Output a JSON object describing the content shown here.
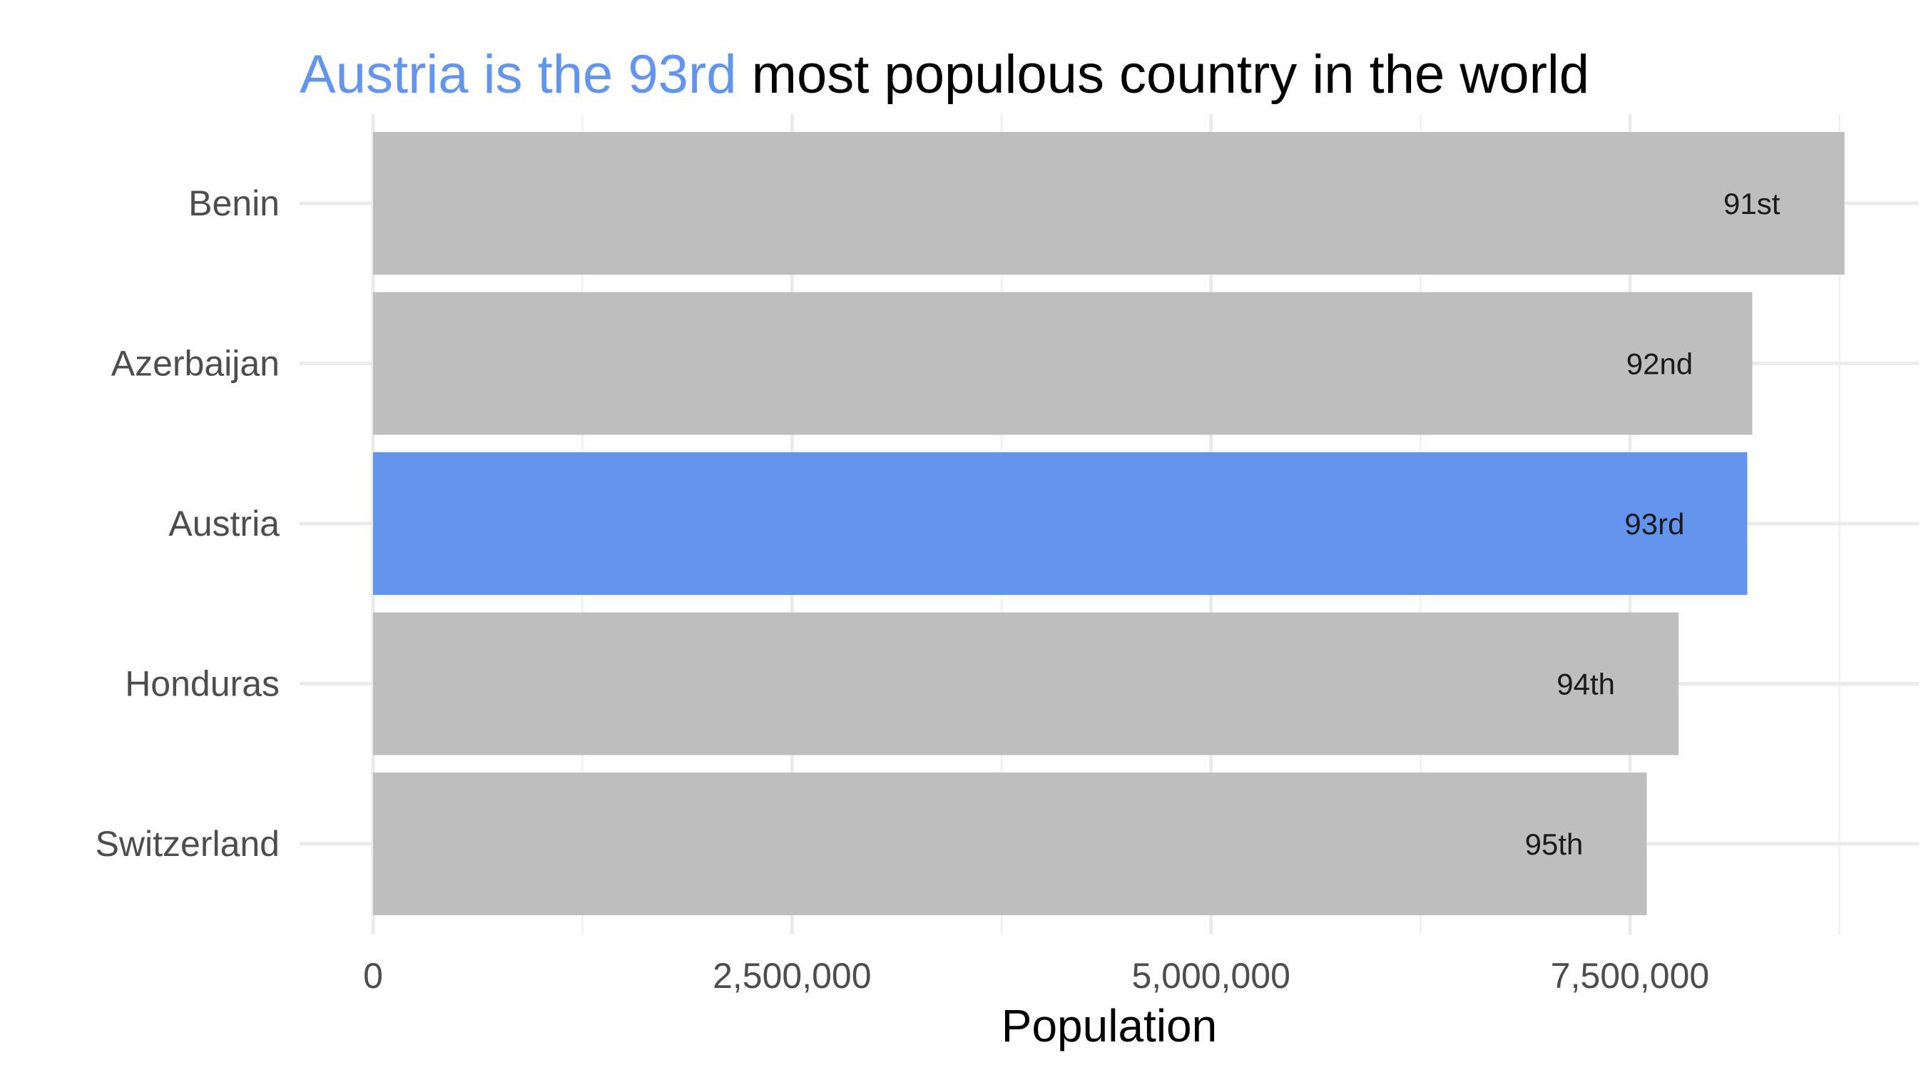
{
  "chart_data": {
    "type": "bar",
    "orientation": "horizontal",
    "title": {
      "highlight": "Austria is the 93rd",
      "rest": " most populous country in the world"
    },
    "xlabel": "Population",
    "ylabel": "",
    "xlim": [
      0,
      8800000
    ],
    "x_ticks": [
      0,
      2500000,
      5000000,
      7500000
    ],
    "x_tick_labels": [
      "0",
      "2,500,000",
      "5,000,000",
      "7,500,000"
    ],
    "categories": [
      "Benin",
      "Azerbaijan",
      "Austria",
      "Honduras",
      "Switzerland"
    ],
    "values": [
      8780000,
      8230000,
      8200000,
      7790000,
      7600000
    ],
    "labels": [
      "91st",
      "92nd",
      "93rd",
      "94th",
      "95th"
    ],
    "highlight_index": 2,
    "colors": {
      "highlight": "#6495ED",
      "bar": "#BEBEBE",
      "title_rest": "#000000"
    },
    "grid": true,
    "legend": "none"
  }
}
